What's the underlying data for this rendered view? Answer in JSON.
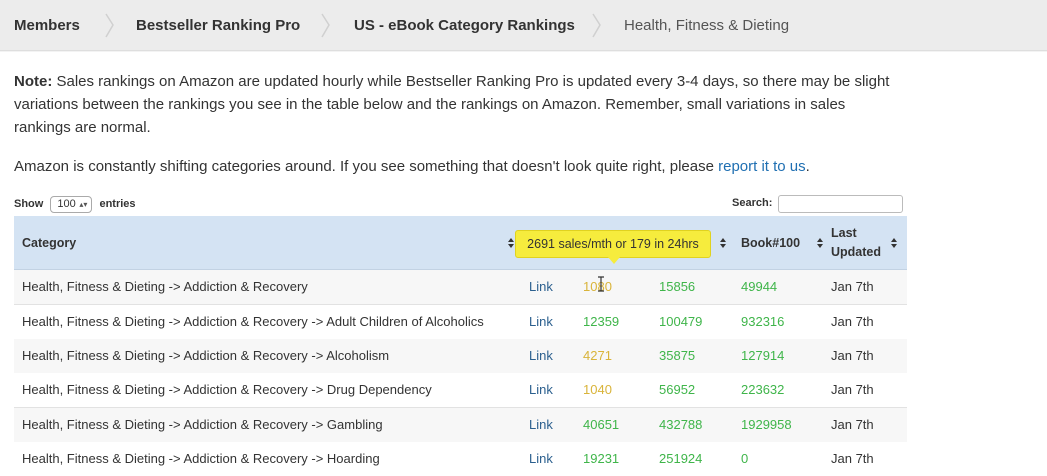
{
  "breadcrumb": {
    "items": [
      "Members",
      "Bestseller Ranking Pro",
      "US - eBook Category Rankings",
      "Health, Fitness & Dieting"
    ]
  },
  "note": {
    "label": "Note:",
    "text": " Sales rankings on Amazon are updated hourly while Bestseller Ranking Pro is updated every 3-4 days, so there may be slight variations between the rankings you see in the table below and the rankings on Amazon. Remember, small variations in sales rankings are normal.",
    "shift_text": "Amazon is constantly shifting categories around. If you see something that doesn't look quite right, please ",
    "report_link": "report it to us",
    "shift_end": "."
  },
  "controls": {
    "show_label": "Show",
    "entries_value": "100",
    "entries_label": "entries",
    "search_label": "Search:"
  },
  "table": {
    "headers": {
      "category": "Category",
      "book100": "Book#100",
      "last_updated": "Last Updated"
    },
    "tooltip": "2691 sales/mth or 179 in 24hrs",
    "rows": [
      {
        "category": "Health, Fitness & Dieting -> Addiction & Recovery",
        "link": "Link",
        "rank": "1080",
        "mid": "15856",
        "book100": "49944",
        "date": "Jan 7th"
      },
      {
        "category": "Health, Fitness & Dieting -> Addiction & Recovery -> Adult Children of Alcoholics",
        "link": "Link",
        "rank": "12359",
        "mid": "100479",
        "book100": "932316",
        "date": "Jan 7th"
      },
      {
        "category": "Health, Fitness & Dieting -> Addiction & Recovery -> Alcoholism",
        "link": "Link",
        "rank": "4271",
        "mid": "35875",
        "book100": "127914",
        "date": "Jan 7th"
      },
      {
        "category": "Health, Fitness & Dieting -> Addiction & Recovery -> Drug Dependency",
        "link": "Link",
        "rank": "1040",
        "mid": "56952",
        "book100": "223632",
        "date": "Jan 7th"
      },
      {
        "category": "Health, Fitness & Dieting -> Addiction & Recovery -> Gambling",
        "link": "Link",
        "rank": "40651",
        "mid": "432788",
        "book100": "1929958",
        "date": "Jan 7th"
      },
      {
        "category": "Health, Fitness & Dieting -> Addiction & Recovery -> Hoarding",
        "link": "Link",
        "rank": "19231",
        "mid": "251924",
        "book100": "0",
        "date": "Jan 7th"
      }
    ]
  },
  "colors": {
    "header_bg": "#d4e3f3",
    "tooltip_bg": "#f6ec3d",
    "rank_green": "#3fb54a",
    "rank_yellow": "#d9b43a",
    "link": "#2b5f8e"
  },
  "icons": [
    "chevron-right-icon",
    "sort-icon",
    "select-arrow-icon",
    "text-cursor-icon"
  ]
}
